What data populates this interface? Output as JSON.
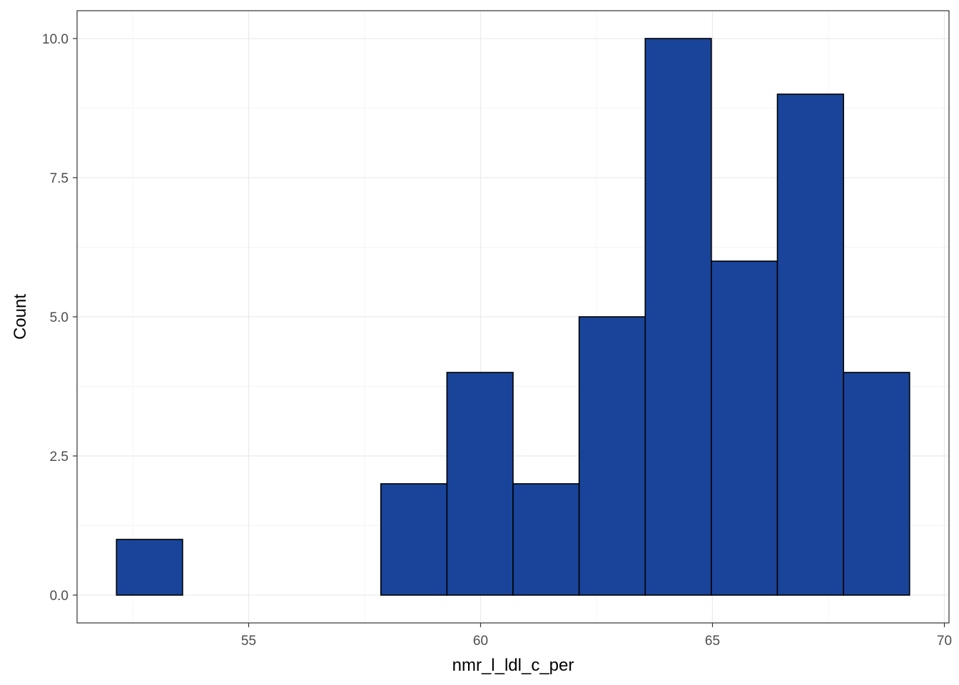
{
  "chart_data": {
    "type": "bar",
    "subtype": "histogram",
    "title": "",
    "xlabel": "nmr_l_ldl_c_per",
    "ylabel": "Count",
    "xlim": [
      51.3,
      70.1
    ],
    "ylim": [
      -0.5,
      10.5
    ],
    "x_ticks": [
      55,
      60,
      65,
      70
    ],
    "x_tick_labels": [
      "55",
      "60",
      "65",
      "70"
    ],
    "y_ticks": [
      0,
      2.5,
      5,
      7.5,
      10
    ],
    "y_tick_labels": [
      "0.0",
      "2.5",
      "5.0",
      "7.5",
      "10.0"
    ],
    "bin_width": 1.425,
    "bins": [
      {
        "x_start": 52.15,
        "x_end": 53.575,
        "count": 1
      },
      {
        "x_start": 53.575,
        "x_end": 55.0,
        "count": 0
      },
      {
        "x_start": 55.0,
        "x_end": 56.425,
        "count": 0
      },
      {
        "x_start": 56.425,
        "x_end": 57.85,
        "count": 0
      },
      {
        "x_start": 57.85,
        "x_end": 59.275,
        "count": 2
      },
      {
        "x_start": 59.275,
        "x_end": 60.7,
        "count": 4
      },
      {
        "x_start": 60.7,
        "x_end": 62.125,
        "count": 2
      },
      {
        "x_start": 62.125,
        "x_end": 63.55,
        "count": 5
      },
      {
        "x_start": 63.55,
        "x_end": 64.975,
        "count": 10
      },
      {
        "x_start": 64.975,
        "x_end": 66.4,
        "count": 6
      },
      {
        "x_start": 66.4,
        "x_end": 67.825,
        "count": 9
      },
      {
        "x_start": 67.825,
        "x_end": 69.25,
        "count": 4
      }
    ],
    "grid": true,
    "legend": "none",
    "colors": {
      "bar_fill": "#19449A",
      "bar_stroke": "#000000",
      "grid_major": "#ebebeb",
      "grid_minor": "#f4f4f4",
      "panel_border": "#333333",
      "tick_label": "#4d4d4d",
      "axis_title": "#000000"
    }
  }
}
